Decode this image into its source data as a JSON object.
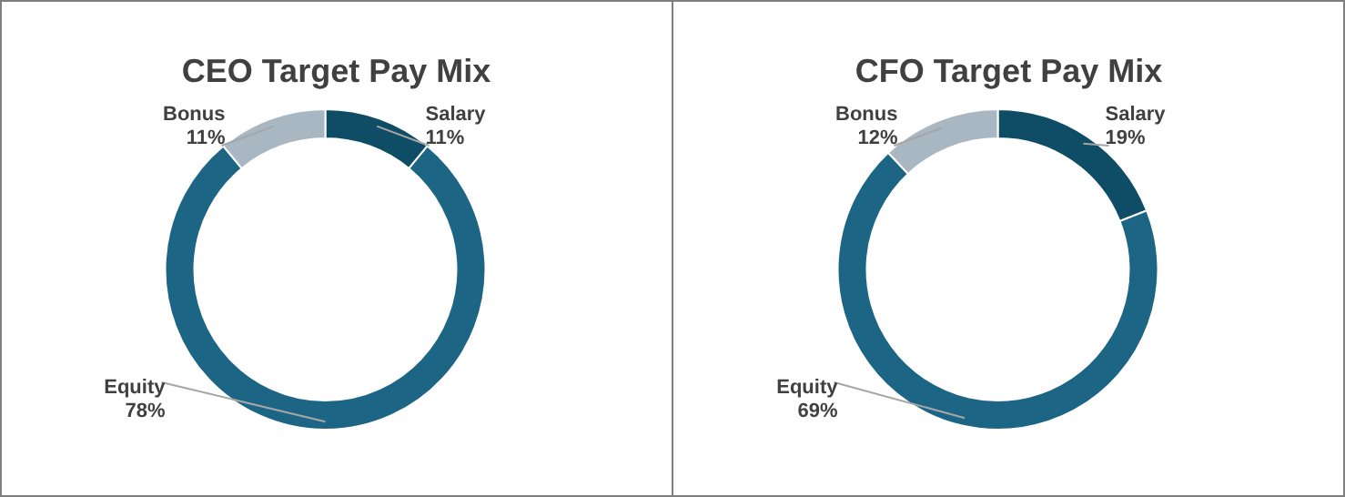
{
  "chart_data": [
    {
      "type": "donut",
      "title": "CEO Target Pay Mix",
      "categories": [
        "Salary",
        "Equity",
        "Bonus"
      ],
      "values": [
        11,
        78,
        11
      ],
      "colors": [
        "#0f4c65",
        "#1d6584",
        "#a9b7c3"
      ],
      "value_labels": [
        "11%",
        "78%",
        "11%"
      ]
    },
    {
      "type": "donut",
      "title": "CFO Target Pay Mix",
      "categories": [
        "Salary",
        "Equity",
        "Bonus"
      ],
      "values": [
        19,
        69,
        12
      ],
      "colors": [
        "#0f4c65",
        "#1d6584",
        "#a9b7c3"
      ],
      "value_labels": [
        "19%",
        "69%",
        "12%"
      ]
    }
  ]
}
